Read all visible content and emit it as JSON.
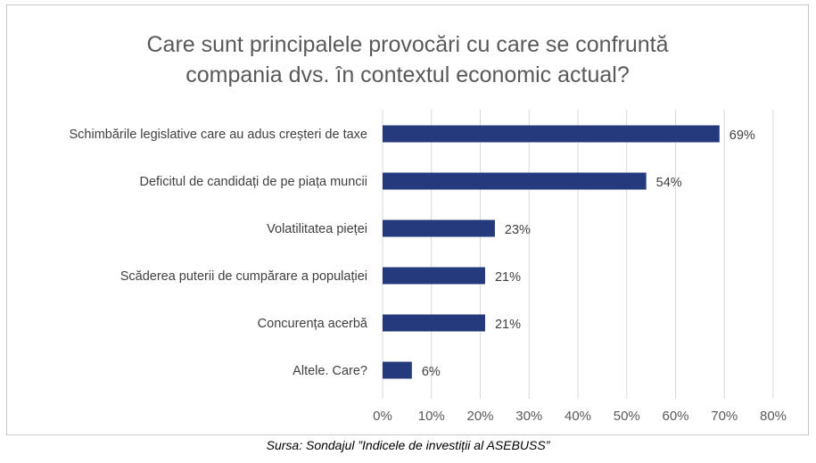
{
  "chart_data": {
    "type": "bar",
    "orientation": "horizontal",
    "title_lines": [
      "Care sunt principalele provocări cu care se confruntă",
      "compania dvs. în contextul economic actual?"
    ],
    "categories": [
      "Schimbările legislative care au adus creșteri de taxe",
      "Deficitul de candidați de pe piața muncii",
      "Volatilitatea pieței",
      "Scăderea puterii de cumpărare a populației",
      "Concurența acerbă",
      "Altele. Care?"
    ],
    "values": [
      69,
      54,
      23,
      21,
      21,
      6
    ],
    "data_labels": [
      "69%",
      "54%",
      "23%",
      "21%",
      "21%",
      "6%"
    ],
    "xlim": [
      0,
      80
    ],
    "xticks": [
      0,
      10,
      20,
      30,
      40,
      50,
      60,
      70,
      80
    ],
    "xtick_labels": [
      "0%",
      "10%",
      "20%",
      "30%",
      "40%",
      "50%",
      "60%",
      "70%",
      "80%"
    ],
    "grid": "vertical",
    "legend": "none",
    "bar_color": "#243a7d",
    "grid_color": "#d9d9d9"
  },
  "caption": "Sursa: Sondajul ”Indicele de investiții al ASEBUSS”"
}
